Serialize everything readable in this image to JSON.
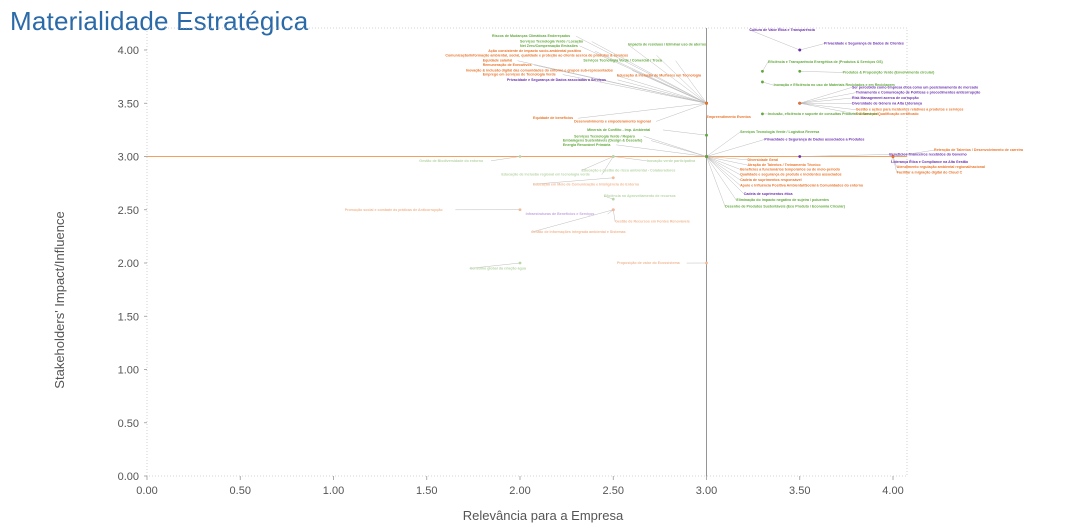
{
  "title": "Materialidade Estratégica",
  "colors": {
    "green": "#5fa83a",
    "orange": "#e8742a",
    "purple": "#6b2fb0",
    "faint": "#b9d6a8",
    "faint_orange": "#f2b995",
    "faint_purple": "#c7a6e6",
    "title": "#2b6aa8",
    "threshold": "#f0a060",
    "grid": "#c8c8c8"
  },
  "chart_data": {
    "type": "scatter",
    "title": "Materialidade Estratégica",
    "xlabel": "Relevância para a Empresa",
    "ylabel": "Stakeholders' Impact/Influence",
    "xlim": [
      0,
      4.2
    ],
    "ylim": [
      0,
      4.2
    ],
    "x_ticks": [
      "0.00",
      "0.50",
      "1.00",
      "1.50",
      "2.00",
      "2.50",
      "3.00",
      "3.50",
      "4.00"
    ],
    "y_ticks": [
      "0.00",
      "0.50",
      "1.00",
      "1.50",
      "2.00",
      "2.50",
      "3.00",
      "3.50",
      "4.00"
    ],
    "thresholds": {
      "x": 3.0,
      "y": 3.0
    },
    "points": [
      {
        "x": 3.0,
        "y": 3.5,
        "label": "Riscos de Mudanças Climáticas Endereçados",
        "color": "green",
        "lx": 1.85,
        "ly": 4.12,
        "anchor": "start"
      },
      {
        "x": 3.0,
        "y": 3.5,
        "label": "Serviços Tecnologia Verde / Locação",
        "color": "green",
        "lx": 2.0,
        "ly": 4.07,
        "anchor": "start"
      },
      {
        "x": 3.0,
        "y": 3.5,
        "label": "Net Zero/Compensação Emissões",
        "color": "green",
        "lx": 2.0,
        "ly": 4.03,
        "anchor": "start"
      },
      {
        "x": 3.0,
        "y": 3.5,
        "label": "Ação consistente de impacto socio-ambiental positivo",
        "color": "orange",
        "lx": 1.83,
        "ly": 3.98,
        "anchor": "start"
      },
      {
        "x": 3.0,
        "y": 3.5,
        "label": "Comunicação/Informação ambiental, social, qualidade e proteção ao cliente acerca de produtos & serviços",
        "color": "orange",
        "lx": 1.6,
        "ly": 3.94,
        "anchor": "start"
      },
      {
        "x": 3.0,
        "y": 3.5,
        "label": "Equidade salarial",
        "color": "orange",
        "lx": 1.8,
        "ly": 3.89,
        "anchor": "start"
      },
      {
        "x": 3.0,
        "y": 3.5,
        "label": "Remuneração de Executivos",
        "color": "orange",
        "lx": 1.8,
        "ly": 3.85,
        "anchor": "start"
      },
      {
        "x": 3.0,
        "y": 3.5,
        "label": "Inovação & inclusão digital das comunidades do entorno e grupos sub-representados",
        "color": "orange",
        "lx": 1.71,
        "ly": 3.8,
        "anchor": "start"
      },
      {
        "x": 3.0,
        "y": 3.5,
        "label": "Emprego em serviços de Tecnologia Verde",
        "color": "orange",
        "lx": 1.8,
        "ly": 3.76,
        "anchor": "start"
      },
      {
        "x": 3.0,
        "y": 3.5,
        "label": "Privacidade e Segurança de Dados associadas a Serviços",
        "color": "purple",
        "lx": 1.93,
        "ly": 3.71,
        "anchor": "start"
      },
      {
        "x": 3.0,
        "y": 3.5,
        "label": "Impacto de resíduos / Eliminar uso de aterros",
        "color": "green",
        "lx": 2.58,
        "ly": 4.04,
        "anchor": "start"
      },
      {
        "x": 3.0,
        "y": 3.5,
        "label": "Serviços Tecnologia Verde / Comercial / Troca",
        "color": "green",
        "lx": 2.34,
        "ly": 3.89,
        "anchor": "start"
      },
      {
        "x": 3.0,
        "y": 3.5,
        "label": "Educação & inclusão de Mulheres em Tecnologia",
        "color": "orange",
        "lx": 2.52,
        "ly": 3.75,
        "anchor": "start"
      },
      {
        "x": 3.0,
        "y": 3.5,
        "label": "Empreendimento Eventos",
        "color": "orange",
        "lx": 3.0,
        "ly": 3.36,
        "anchor": "start"
      },
      {
        "x": 3.0,
        "y": 3.5,
        "label": "Equidade de benefícios",
        "color": "orange",
        "lx": 2.07,
        "ly": 3.35,
        "anchor": "start"
      },
      {
        "x": 3.0,
        "y": 3.5,
        "label": "Desenvolvimento e empoderamento regional",
        "color": "orange",
        "lx": 2.29,
        "ly": 3.32,
        "anchor": "start"
      },
      {
        "x": 3.0,
        "y": 3.2,
        "label": "Minerais de Conflito - Imp. Ambiental",
        "color": "green",
        "lx": 2.36,
        "ly": 3.24,
        "anchor": "start"
      },
      {
        "x": 3.0,
        "y": 3.0,
        "label": "Serviços Tecnologia Verde / Reparo",
        "color": "green",
        "lx": 2.29,
        "ly": 3.18,
        "anchor": "start"
      },
      {
        "x": 3.0,
        "y": 3.0,
        "label": "Embalagens Sustentáveis (Design & Descarte)",
        "color": "green",
        "lx": 2.23,
        "ly": 3.14,
        "anchor": "start"
      },
      {
        "x": 3.0,
        "y": 3.0,
        "label": "Energia Renovável Primária",
        "color": "green",
        "lx": 2.23,
        "ly": 3.1,
        "anchor": "start"
      },
      {
        "x": 3.5,
        "y": 4.0,
        "label": "Cultura de Valor Ética e Transparência",
        "color": "purple",
        "lx": 3.23,
        "ly": 4.18,
        "anchor": "start"
      },
      {
        "x": 3.5,
        "y": 4.0,
        "label": "Privacidade e Segurança de Dados de Clientes",
        "color": "purple",
        "lx": 3.63,
        "ly": 4.05,
        "anchor": "start"
      },
      {
        "x": 3.3,
        "y": 3.8,
        "label": "Eficiência e Transparência Energética de (Produtos & Serviços GS)",
        "color": "green",
        "lx": 3.33,
        "ly": 3.88,
        "anchor": "start"
      },
      {
        "x": 3.5,
        "y": 3.8,
        "label": "Produtos & Proposição Verde (Envolvimento circular)",
        "color": "green",
        "lx": 3.73,
        "ly": 3.78,
        "anchor": "start"
      },
      {
        "x": 3.3,
        "y": 3.7,
        "label": "Inovação e Eficiência no uso de Materiais Reciclados e em Reciclagem",
        "color": "green",
        "lx": 3.36,
        "ly": 3.66,
        "anchor": "start"
      },
      {
        "x": 3.5,
        "y": 3.5,
        "label": "Ser percebido como empresa ética como um posicionamento de mercado",
        "color": "purple",
        "lx": 3.78,
        "ly": 3.64,
        "anchor": "start"
      },
      {
        "x": 3.5,
        "y": 3.5,
        "label": "Treinamento e Comunicação de Políticas e procedimentos anticorrupção",
        "color": "purple",
        "lx": 3.8,
        "ly": 3.59,
        "anchor": "start"
      },
      {
        "x": 3.5,
        "y": 3.5,
        "label": "Risk Management acerca de corrupção",
        "color": "purple",
        "lx": 3.78,
        "ly": 3.54,
        "anchor": "start"
      },
      {
        "x": 3.5,
        "y": 3.5,
        "label": "Diversidade de Gênero na Alta Liderança",
        "color": "purple",
        "lx": 3.78,
        "ly": 3.49,
        "anchor": "start"
      },
      {
        "x": 3.5,
        "y": 3.5,
        "label": "Gestão e ações para incidentes relativos a produtos e serviços",
        "color": "orange",
        "lx": 3.8,
        "ly": 3.43,
        "anchor": "start"
      },
      {
        "x": 3.5,
        "y": 3.5,
        "label": "Treinamento/Qualificação certificado",
        "color": "orange",
        "lx": 3.8,
        "ly": 3.39,
        "anchor": "start"
      },
      {
        "x": 3.3,
        "y": 3.4,
        "label": "Inclusão, eficiência e suporte de consultas Produtos & Serviços",
        "color": "green",
        "lx": 3.33,
        "ly": 3.39,
        "anchor": "start"
      },
      {
        "x": 3.0,
        "y": 3.0,
        "label": "Serviços Tecnologia Verde / Logística Reversa",
        "color": "green",
        "lx": 3.18,
        "ly": 3.22,
        "anchor": "start"
      },
      {
        "x": 3.0,
        "y": 3.0,
        "label": "Privacidade e Segurança de Dados associados a Produtos",
        "color": "purple",
        "lx": 3.31,
        "ly": 3.15,
        "anchor": "start"
      },
      {
        "x": 4.0,
        "y": 3.0,
        "label": "Retenção de Talentos / Desenvolvimento de carreira",
        "color": "orange",
        "lx": 4.22,
        "ly": 3.05,
        "anchor": "start"
      },
      {
        "x": 3.5,
        "y": 3.0,
        "label": "Benefícios financeiros recebidos do Governo",
        "color": "purple",
        "lx": 3.98,
        "ly": 3.01,
        "anchor": "start"
      },
      {
        "x": 3.0,
        "y": 3.0,
        "label": "Diversidade Geral",
        "color": "orange",
        "lx": 3.22,
        "ly": 2.96,
        "anchor": "start"
      },
      {
        "x": 3.0,
        "y": 3.0,
        "label": "Atração de Talentos / Treinamento Técnico",
        "color": "orange",
        "lx": 3.22,
        "ly": 2.91,
        "anchor": "start"
      },
      {
        "x": 3.0,
        "y": 3.0,
        "label": "Benefícios a funcionários temporários ou de meio-período",
        "color": "orange",
        "lx": 3.18,
        "ly": 2.87,
        "anchor": "start"
      },
      {
        "x": 3.0,
        "y": 3.0,
        "label": "Qualidade e segurança de produto e incidentes associados",
        "color": "orange",
        "lx": 3.18,
        "ly": 2.82,
        "anchor": "start"
      },
      {
        "x": 3.0,
        "y": 3.0,
        "label": "Cadeia de suprimentos responsável",
        "color": "orange",
        "lx": 3.18,
        "ly": 2.77,
        "anchor": "start"
      },
      {
        "x": 3.0,
        "y": 3.0,
        "label": "Apoio e Influência Positiva Ambiental/Social à Comunidades do entorno",
        "color": "orange",
        "lx": 3.18,
        "ly": 2.72,
        "anchor": "start"
      },
      {
        "x": 3.0,
        "y": 3.0,
        "label": "Cadeia de suprimentos ética",
        "color": "purple",
        "lx": 3.2,
        "ly": 2.64,
        "anchor": "start"
      },
      {
        "x": 3.0,
        "y": 3.0,
        "label": "Eliminação do impacto negativo de sujeira / poluentes",
        "color": "green",
        "lx": 3.16,
        "ly": 2.58,
        "anchor": "start"
      },
      {
        "x": 3.0,
        "y": 3.0,
        "label": "Desenho de Produtos Sustentáveis (Eco Produto / Economia Circular)",
        "color": "green",
        "lx": 3.1,
        "ly": 2.52,
        "anchor": "start"
      },
      {
        "x": 4.0,
        "y": 3.0,
        "label": "Liderança Ética e Compliance na Alta Gestão",
        "color": "purple",
        "lx": 3.99,
        "ly": 2.94,
        "anchor": "start"
      },
      {
        "x": 4.0,
        "y": 3.0,
        "label": "Atendimento regulação ambiental regional/nacional",
        "color": "orange",
        "lx": 4.02,
        "ly": 2.89,
        "anchor": "start"
      },
      {
        "x": 4.0,
        "y": 3.0,
        "label": "Facilitar a migração digital do Cloud C",
        "color": "orange",
        "lx": 4.02,
        "ly": 2.84,
        "anchor": "start"
      },
      {
        "x": 2.0,
        "y": 3.0,
        "label": "Gestão de Biodiversidade do entorno",
        "color": "faint",
        "lx": 1.46,
        "ly": 2.95,
        "anchor": "start"
      },
      {
        "x": 2.5,
        "y": 3.0,
        "label": "Educação de inclusão regional em tecnologia verde",
        "color": "faint",
        "lx": 1.9,
        "ly": 2.82,
        "anchor": "start"
      },
      {
        "x": 2.5,
        "y": 3.0,
        "label": "Educação e gestão do risco ambiental - Colaboradores",
        "color": "faint",
        "lx": 2.33,
        "ly": 2.86,
        "anchor": "start"
      },
      {
        "x": 2.5,
        "y": 3.0,
        "label": "Inovação verde participativa",
        "color": "faint",
        "lx": 2.68,
        "ly": 2.95,
        "anchor": "start"
      },
      {
        "x": 2.5,
        "y": 2.8,
        "label": "Educação em Meio de Comunicação e Inteligência do Entorno",
        "color": "faint_orange",
        "lx": 2.07,
        "ly": 2.73,
        "anchor": "start"
      },
      {
        "x": 2.5,
        "y": 2.6,
        "label": "Eficiência no Aproveitamento de recursos",
        "color": "faint",
        "lx": 2.45,
        "ly": 2.62,
        "anchor": "start"
      },
      {
        "x": 2.0,
        "y": 2.5,
        "label": "Promoção social e combate às práticas de Anticorrupção",
        "color": "faint_orange",
        "lx": 1.06,
        "ly": 2.49,
        "anchor": "start"
      },
      {
        "x": 2.5,
        "y": 2.5,
        "label": "Infraestruturas de Benefícios e Serviços",
        "color": "faint_purple",
        "lx": 2.03,
        "ly": 2.45,
        "anchor": "start"
      },
      {
        "x": 2.5,
        "y": 2.5,
        "label": "Gestão de Recursos em Fontes Renováveis",
        "color": "faint_orange",
        "lx": 2.51,
        "ly": 2.38,
        "anchor": "start"
      },
      {
        "x": 2.5,
        "y": 2.5,
        "label": "Gestão de Informações integrada ambiental e Sistemas",
        "color": "faint_orange",
        "lx": 2.06,
        "ly": 2.28,
        "anchor": "start"
      },
      {
        "x": 2.0,
        "y": 2.0,
        "label": "Consumo global da criação água",
        "color": "faint",
        "lx": 1.73,
        "ly": 1.94,
        "anchor": "start"
      },
      {
        "x": 3.0,
        "y": 2.0,
        "label": "Proposição de valor do Ecossistema",
        "color": "faint_orange",
        "lx": 2.52,
        "ly": 1.99,
        "anchor": "start"
      }
    ]
  }
}
